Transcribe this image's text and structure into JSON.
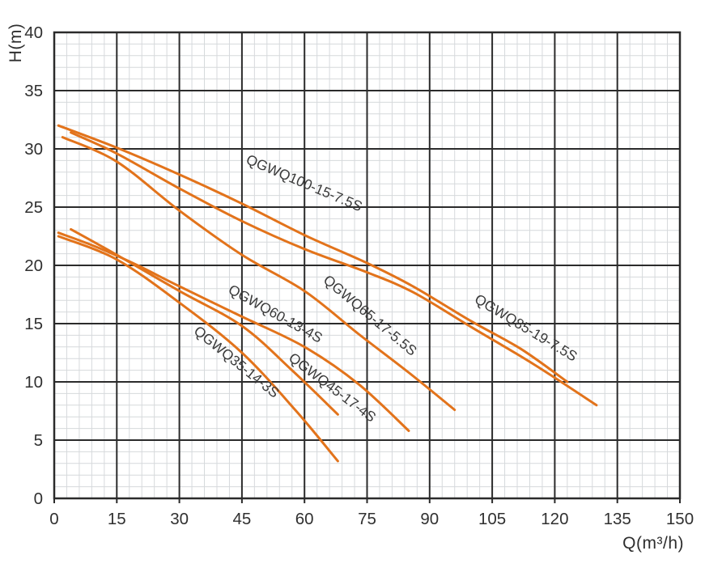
{
  "chart_data": {
    "type": "line",
    "xlabel": "Q(m³/h)",
    "ylabel": "H(m)",
    "xlim": [
      0,
      150
    ],
    "ylim": [
      0,
      40
    ],
    "x_ticks": [
      0,
      15,
      30,
      45,
      60,
      75,
      90,
      105,
      120,
      135,
      150
    ],
    "y_ticks": [
      0,
      5,
      10,
      15,
      20,
      25,
      30,
      35,
      40
    ],
    "x_minor_step": 3,
    "y_minor_step": 1,
    "grid": "major and minor gridlines on",
    "legend_position": "labels rotated along curves",
    "colors": {
      "curve": "#e2731b",
      "grid_major": "#2b2b2b",
      "grid_minor": "#d6d9dc",
      "text": "#303030"
    },
    "series": [
      {
        "name": "QGWQ100-15-7.5S",
        "points": [
          [
            1,
            32
          ],
          [
            15,
            30.1
          ],
          [
            30,
            27.8
          ],
          [
            45,
            25.3
          ],
          [
            60,
            22.6
          ],
          [
            75,
            20.2
          ],
          [
            86,
            18.2
          ],
          [
            100,
            15.2
          ],
          [
            112,
            12.8
          ],
          [
            123,
            10
          ]
        ],
        "label_anchor": {
          "q": 59.5,
          "h": 26.7,
          "rot_deg": 23
        }
      },
      {
        "name": "QGWQ85-19-7.5S",
        "points": [
          [
            4,
            31.4
          ],
          [
            15,
            29.6
          ],
          [
            30,
            26.6
          ],
          [
            45,
            23.8
          ],
          [
            60,
            21.4
          ],
          [
            75,
            19.4
          ],
          [
            86,
            17.7
          ],
          [
            100,
            14.7
          ],
          [
            115,
            11.5
          ],
          [
            130,
            8
          ]
        ],
        "label_anchor": {
          "q": 112.5,
          "h": 14.3,
          "rot_deg": 31
        }
      },
      {
        "name": "QGWQ65-17-5.5S",
        "points": [
          [
            2,
            31
          ],
          [
            15,
            28.9
          ],
          [
            30,
            24.7
          ],
          [
            45,
            20.9
          ],
          [
            60,
            17.8
          ],
          [
            73,
            14.1
          ],
          [
            85,
            10.8
          ],
          [
            96,
            7.6
          ]
        ],
        "label_anchor": {
          "q": 75,
          "h": 15.4,
          "rot_deg": 40
        }
      },
      {
        "name": "QGWQ60-13-4S",
        "points": [
          [
            1,
            22.8
          ],
          [
            10,
            21.6
          ],
          [
            20,
            20
          ],
          [
            30,
            18.2
          ],
          [
            45,
            15.6
          ],
          [
            60,
            13
          ],
          [
            73,
            9.8
          ],
          [
            85,
            5.8
          ]
        ],
        "label_anchor": {
          "q": 52.5,
          "h": 15.5,
          "rot_deg": 29
        }
      },
      {
        "name": "QGWQ45-17-4S",
        "points": [
          [
            4,
            23.1
          ],
          [
            15,
            20.9
          ],
          [
            30,
            17.8
          ],
          [
            45,
            14.8
          ],
          [
            57,
            11
          ],
          [
            68,
            7.2
          ]
        ],
        "label_anchor": {
          "q": 66,
          "h": 9.2,
          "rot_deg": 37
        }
      },
      {
        "name": "QGWQ35-14-3S",
        "points": [
          [
            1,
            22.5
          ],
          [
            15,
            20.5
          ],
          [
            30,
            16.8
          ],
          [
            45,
            12.5
          ],
          [
            58,
            7.5
          ],
          [
            68,
            3.2
          ]
        ],
        "label_anchor": {
          "q": 43,
          "h": 11.4,
          "rot_deg": 39
        }
      }
    ]
  }
}
